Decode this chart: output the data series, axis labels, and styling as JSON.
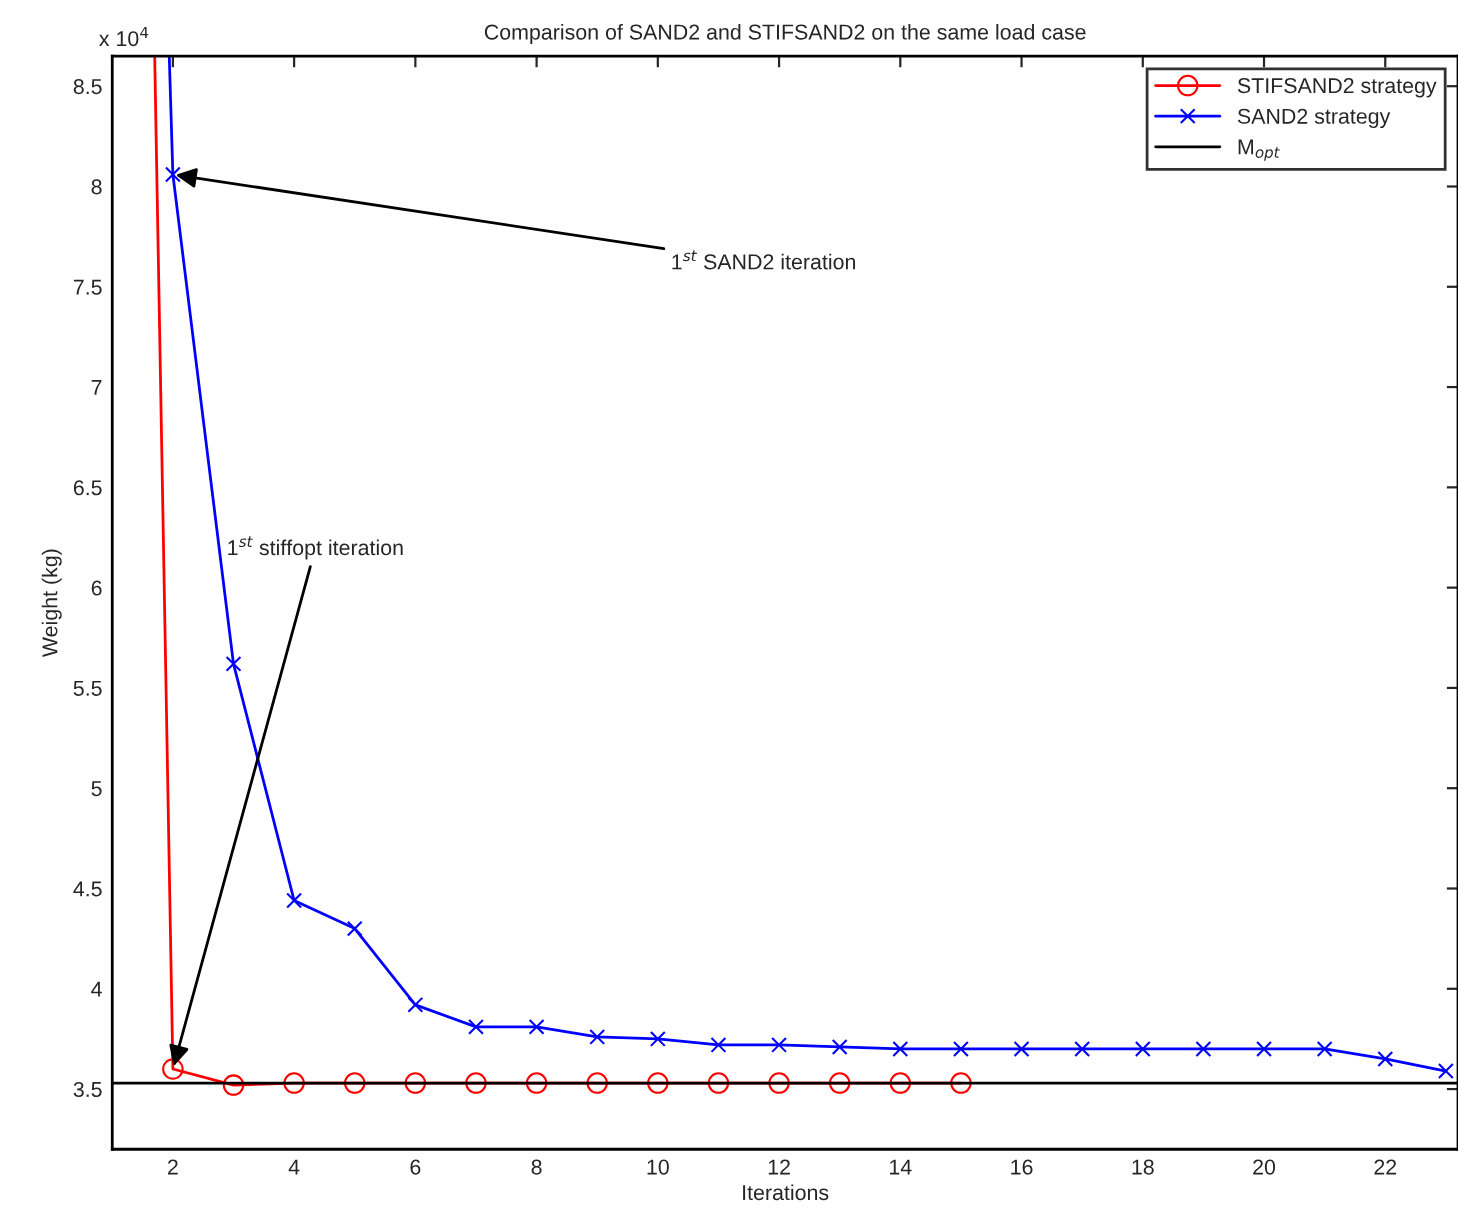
{
  "chart_data": {
    "type": "line",
    "title": "Comparison of SAND2 and STIFSAND2 on the same load case",
    "xlabel": "Iterations",
    "ylabel": "Weight (kg)",
    "xlim": [
      1,
      23.2
    ],
    "xticks": [
      2,
      4,
      6,
      8,
      10,
      12,
      14,
      16,
      18,
      20,
      22
    ],
    "ylim": [
      3.2,
      8.65
    ],
    "yticks": [
      3.5,
      4,
      4.5,
      5,
      5.5,
      6,
      6.5,
      7,
      7.5,
      8,
      8.5
    ],
    "series": [
      {
        "name": "STIFSAND2 strategy",
        "color": "#ff0000",
        "marker": "circle",
        "x": [
          1.7,
          2,
          3,
          4,
          5,
          6,
          7,
          8,
          9,
          10,
          11,
          12,
          13,
          14,
          15
        ],
        "values": [
          8.65,
          3.6,
          3.52,
          3.53,
          3.53,
          3.53,
          3.53,
          3.53,
          3.53,
          3.53,
          3.53,
          3.53,
          3.53,
          3.53,
          3.53
        ]
      },
      {
        "name": "SAND2 strategy",
        "color": "#0000ff",
        "marker": "cross",
        "x": [
          1.94,
          2,
          3,
          4,
          5,
          6,
          7,
          8,
          9,
          10,
          11,
          12,
          13,
          14,
          15,
          16,
          17,
          18,
          19,
          20,
          21,
          22,
          23
        ],
        "values": [
          8.65,
          8.06,
          5.62,
          4.44,
          4.3,
          3.92,
          3.81,
          3.81,
          3.76,
          3.75,
          3.72,
          3.72,
          3.71,
          3.7,
          3.7,
          3.7,
          3.7,
          3.7,
          3.7,
          3.7,
          3.7,
          3.65,
          3.59
        ]
      }
    ],
    "ref_lines": [
      {
        "axis": "y",
        "value": 3.53,
        "label": "M$_{opt}$",
        "color": "#000000"
      }
    ],
    "annotations": [
      "x 10$^{4}$",
      {
        "text": "1$^{st}$ SAND2 iteration",
        "x": 2,
        "y": 8.06
      },
      {
        "text": "1$^{st}$ stiffopt iteration",
        "x": 2,
        "y": 3.6
      }
    ],
    "legend": "top right",
    "grid": false
  }
}
